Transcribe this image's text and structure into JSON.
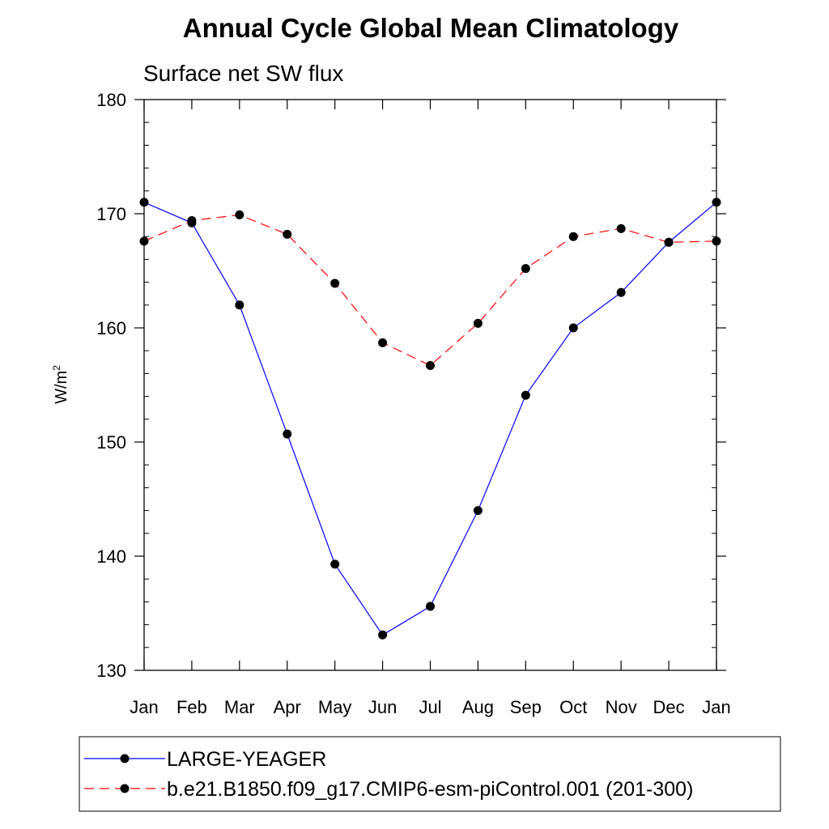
{
  "chart_data": {
    "type": "line",
    "title": "Annual Cycle Global Mean Climatology",
    "subtitle": "Surface net SW flux",
    "ylabel": "W/m",
    "ylabel_superscript": "2",
    "xlabel": "",
    "categories": [
      "Jan",
      "Feb",
      "Mar",
      "Apr",
      "May",
      "Jun",
      "Jul",
      "Aug",
      "Sep",
      "Oct",
      "Nov",
      "Dec",
      "Jan"
    ],
    "ylim": [
      130,
      180
    ],
    "yticks": [
      130,
      140,
      150,
      160,
      170,
      180
    ],
    "grid": false,
    "legend_position": "bottom",
    "series": [
      {
        "name": "LARGE-YEAGER",
        "color": "#0000ff",
        "dash": "solid",
        "marker": "filled-circle",
        "values": [
          171.0,
          169.2,
          162.0,
          150.7,
          139.3,
          133.1,
          135.6,
          144.0,
          154.1,
          160.0,
          163.1,
          167.5,
          171.0
        ]
      },
      {
        "name": "b.e21.B1850.f09_g17.CMIP6-esm-piControl.001 (201-300)",
        "color": "#ff0000",
        "dash": "dashed",
        "marker": "filled-circle",
        "values": [
          167.6,
          169.4,
          169.9,
          168.2,
          163.9,
          158.7,
          156.7,
          160.4,
          165.2,
          168.0,
          168.7,
          167.5,
          167.6
        ]
      }
    ]
  }
}
